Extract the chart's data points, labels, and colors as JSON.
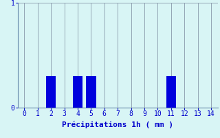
{
  "categories": [
    0,
    1,
    2,
    3,
    4,
    5,
    6,
    7,
    8,
    9,
    10,
    11,
    12,
    13,
    14
  ],
  "values": [
    0,
    0,
    0.3,
    0,
    0.3,
    0.3,
    0,
    0,
    0,
    0,
    0,
    0.3,
    0,
    0,
    0
  ],
  "bar_color": "#0000dd",
  "background_color": "#d8f5f5",
  "grid_color": "#8899aa",
  "xlabel": "Précipitations 1h ( mm )",
  "xlabel_color": "#0000cc",
  "tick_color": "#0000cc",
  "axis_color": "#6688aa",
  "ylim": [
    0,
    1
  ],
  "xlim": [
    -0.5,
    14.5
  ],
  "yticks": [
    0,
    1
  ],
  "xticks": [
    0,
    1,
    2,
    3,
    4,
    5,
    6,
    7,
    8,
    9,
    10,
    11,
    12,
    13,
    14
  ],
  "bar_width": 0.75,
  "tick_fontsize": 7,
  "xlabel_fontsize": 8
}
